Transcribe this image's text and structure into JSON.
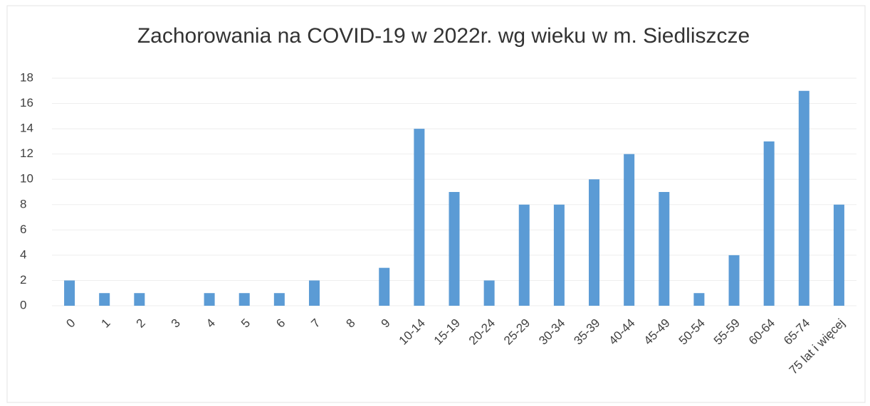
{
  "chart_data": {
    "type": "bar",
    "title": "Zachorowania na COVID-19 w 2022r. wg wieku w m. Siedliszcze",
    "categories": [
      "0",
      "1",
      "2",
      "3",
      "4",
      "5",
      "6",
      "7",
      "8",
      "9",
      "10-14",
      "15-19",
      "20-24",
      "25-29",
      "30-34",
      "35-39",
      "40-44",
      "45-49",
      "50-54",
      "55-59",
      "60-64",
      "65-74",
      "75 lat i więcej"
    ],
    "values": [
      2,
      1,
      1,
      0,
      1,
      1,
      1,
      2,
      0,
      3,
      14,
      9,
      2,
      8,
      8,
      10,
      12,
      9,
      1,
      4,
      13,
      17,
      8
    ],
    "color": "#5b9bd5",
    "ylim": [
      0,
      18
    ],
    "yticks": [
      0,
      2,
      4,
      6,
      8,
      10,
      12,
      14,
      16,
      18
    ],
    "grid": true
  }
}
